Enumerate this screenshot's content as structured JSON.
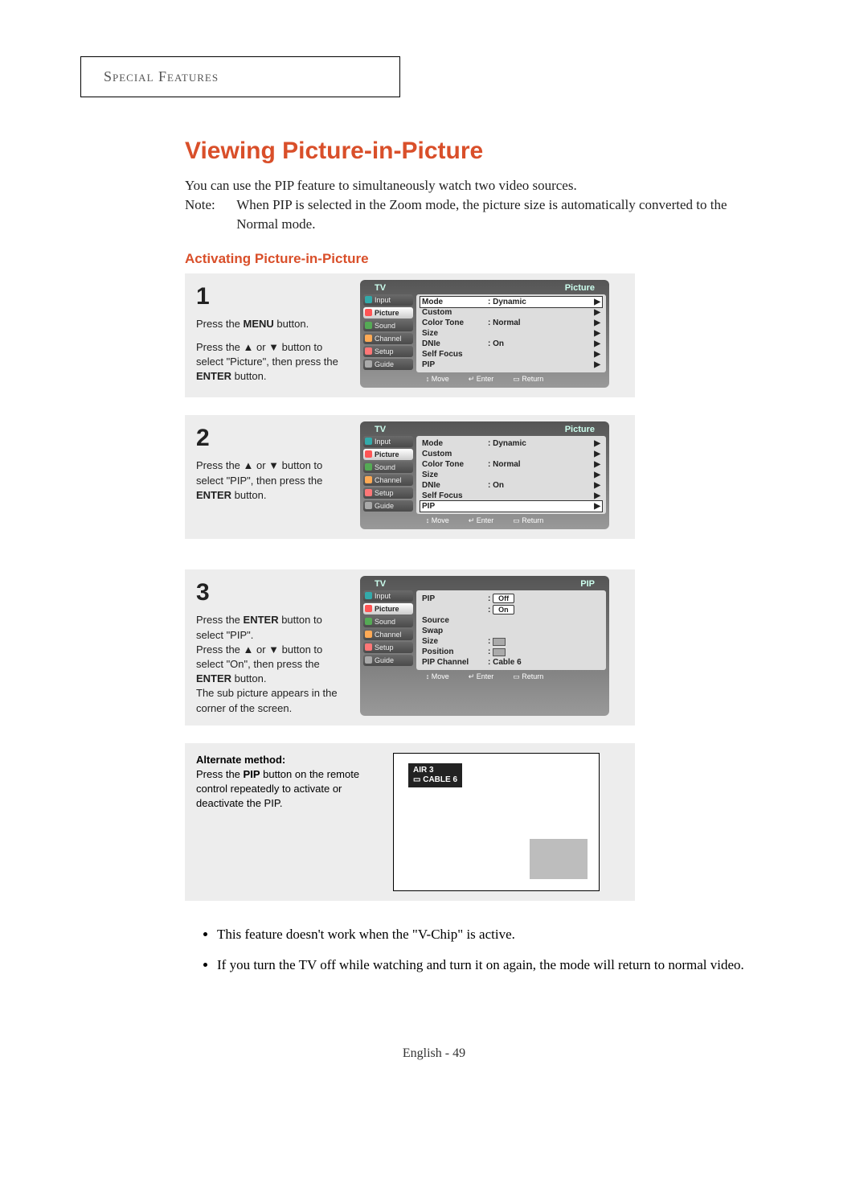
{
  "section_header": "Special Features",
  "title": "Viewing Picture-in-Picture",
  "intro_line": "You can use the PIP feature to simultaneously watch two video sources.",
  "note_label": "Note:",
  "note_text": "When PIP is selected in the Zoom mode, the picture size is automatically converted to the Normal mode.",
  "subheading": "Activating Picture-in-Picture",
  "sidebar_items": [
    "Input",
    "Picture",
    "Sound",
    "Channel",
    "Setup",
    "Guide"
  ],
  "osd_footer": {
    "move": "Move",
    "enter": "Enter",
    "return": "Return"
  },
  "step1": {
    "num": "1",
    "text_a": "Press the ",
    "btn_a": "MENU",
    "text_b": " button.",
    "text_c": "Press the ▲ or ▼ button to select \"Picture\", then press the ",
    "btn_b": "ENTER",
    "text_d": " button.",
    "osd_hl": "TV",
    "osd_hr": "Picture",
    "selected_side": 1,
    "rows": [
      {
        "label": "Mode",
        "val": ":  Dynamic",
        "sel": true
      },
      {
        "label": "Custom",
        "val": ""
      },
      {
        "label": "Color Tone",
        "val": ":  Normal"
      },
      {
        "label": "Size",
        "val": ""
      },
      {
        "label": "DNIe",
        "val": ":  On"
      },
      {
        "label": "Self Focus",
        "val": ""
      },
      {
        "label": "PIP",
        "val": ""
      }
    ]
  },
  "step2": {
    "num": "2",
    "text_a": "Press the ▲ or ▼ button to select \"PIP\", then press the ",
    "btn_a": "ENTER",
    "text_b": " button.",
    "osd_hl": "TV",
    "osd_hr": "Picture",
    "selected_side": 1,
    "rows": [
      {
        "label": "Mode",
        "val": ":  Dynamic"
      },
      {
        "label": "Custom",
        "val": ""
      },
      {
        "label": "Color Tone",
        "val": ":  Normal"
      },
      {
        "label": "Size",
        "val": ""
      },
      {
        "label": "DNIe",
        "val": ":  On"
      },
      {
        "label": "Self Focus",
        "val": ""
      },
      {
        "label": "PIP",
        "val": "",
        "sel": true
      }
    ]
  },
  "step3": {
    "num": "3",
    "text_a": "Press the ",
    "btn_a": "ENTER",
    "text_b": " button to select \"PIP\".",
    "text_c": "Press the ▲ or ▼ button to select \"On\", then press the ",
    "btn_c": "ENTER",
    "text_d": " button.",
    "text_e": "The sub picture appears in the corner of the screen.",
    "osd_hl": "TV",
    "osd_hr": "PIP",
    "selected_side": 1,
    "rows": [
      {
        "label": "PIP",
        "val_pill": "Off",
        "val_pill2": "On"
      },
      {
        "label": "Source",
        "val": ""
      },
      {
        "label": "Swap",
        "val": ""
      },
      {
        "label": "Size",
        "val": ":",
        "icon": true
      },
      {
        "label": "Position",
        "val": ":",
        "icon": true
      },
      {
        "label": "PIP Channel",
        "val": ":  Cable  6"
      }
    ]
  },
  "alt": {
    "heading": "Alternate method:",
    "text_a": "Press the ",
    "btn": "PIP",
    "text_b": " button on the remote control repeatedly to activate or deactivate the PIP.",
    "badge_line1": "AIR 3",
    "badge_line2": "CABLE  6"
  },
  "bullets": [
    "This feature doesn't work when the \"V-Chip\" is active.",
    "If you turn the TV off while watching and turn it on again, the mode will return to normal video."
  ],
  "footer": "English - 49"
}
